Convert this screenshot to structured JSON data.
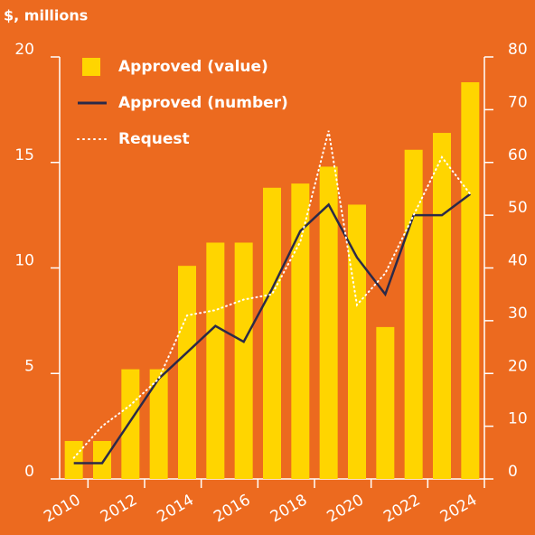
{
  "chart_data": {
    "type": "bar",
    "y_label": "$, millions",
    "categories": [
      "2010",
      null,
      "2012",
      null,
      "2014",
      null,
      "2016",
      null,
      "2018",
      null,
      "2020",
      null,
      "2022",
      null,
      "2024"
    ],
    "series": [
      {
        "name": "Approved (value)",
        "type": "bar",
        "color": "#ffd500",
        "values": [
          1.8,
          1.8,
          5.2,
          5.2,
          10.1,
          11.2,
          11.2,
          13.8,
          14.0,
          14.8,
          13.0,
          7.2,
          15.6,
          16.4,
          18.8
        ]
      },
      {
        "name": "Approved (number)",
        "type": "line",
        "axis": "y2",
        "color": "#2b2a48",
        "values": [
          3,
          3,
          11,
          19,
          24,
          29,
          26,
          36,
          47,
          52,
          42,
          35,
          50,
          50,
          54
        ]
      },
      {
        "name": "Request",
        "type": "dotted",
        "axis": "y2",
        "color": "#ffffff",
        "values": [
          4,
          10,
          14,
          19,
          31,
          32,
          34,
          35,
          45,
          66,
          33,
          39,
          50,
          61,
          54
        ]
      }
    ],
    "ylim": [
      0,
      20
    ],
    "yticks": [
      0,
      5,
      10,
      15,
      20
    ],
    "y2lim": [
      0,
      80
    ],
    "y2ticks": [
      0,
      10,
      20,
      30,
      40,
      50,
      60,
      70,
      80
    ],
    "background": "#ec6a1f"
  }
}
